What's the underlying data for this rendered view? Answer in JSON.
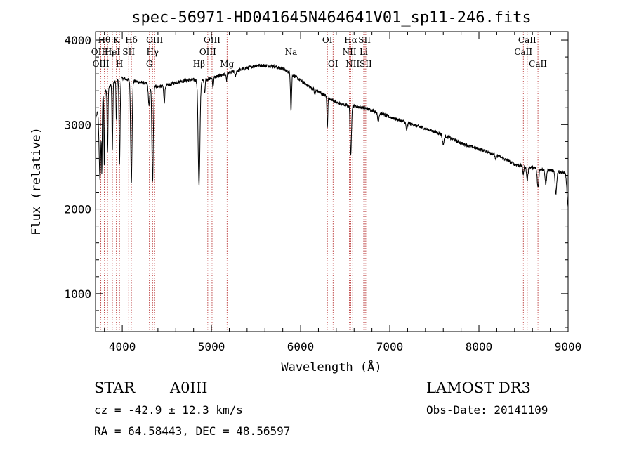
{
  "chart_data": {
    "type": "line",
    "title": "spec-56971-HD041645N464641V01_sp11-246.fits",
    "xlabel": "Wavelength (Å)",
    "ylabel": "Flux (relative)",
    "xlim": [
      3700,
      9000
    ],
    "ylim": [
      550,
      4100
    ],
    "x_ticks": [
      4000,
      5000,
      6000,
      7000,
      8000,
      9000
    ],
    "y_ticks": [
      1000,
      2000,
      3000,
      4000
    ],
    "x_tick_labels": [
      "4000",
      "5000",
      "6000",
      "7000",
      "8000",
      "9000"
    ],
    "y_tick_labels": [
      "1000",
      "2000",
      "3000",
      "4000"
    ],
    "continuum": [
      [
        3700,
        3050
      ],
      [
        3720,
        3150
      ],
      [
        3760,
        3300
      ],
      [
        3800,
        3380
      ],
      [
        3850,
        3450
      ],
      [
        3900,
        3500
      ],
      [
        3950,
        3530
      ],
      [
        4000,
        3550
      ],
      [
        4100,
        3520
      ],
      [
        4200,
        3500
      ],
      [
        4300,
        3480
      ],
      [
        4400,
        3450
      ],
      [
        4500,
        3460
      ],
      [
        4600,
        3500
      ],
      [
        4700,
        3520
      ],
      [
        4800,
        3530
      ],
      [
        4900,
        3520
      ],
      [
        5000,
        3550
      ],
      [
        5100,
        3580
      ],
      [
        5200,
        3610
      ],
      [
        5300,
        3640
      ],
      [
        5400,
        3670
      ],
      [
        5500,
        3700
      ],
      [
        5600,
        3700
      ],
      [
        5700,
        3690
      ],
      [
        5800,
        3660
      ],
      [
        5900,
        3600
      ],
      [
        6000,
        3520
      ],
      [
        6100,
        3450
      ],
      [
        6200,
        3390
      ],
      [
        6300,
        3330
      ],
      [
        6400,
        3260
      ],
      [
        6500,
        3230
      ],
      [
        6600,
        3220
      ],
      [
        6700,
        3200
      ],
      [
        6800,
        3170
      ],
      [
        6900,
        3130
      ],
      [
        7000,
        3090
      ],
      [
        7200,
        3020
      ],
      [
        7400,
        2950
      ],
      [
        7600,
        2880
      ],
      [
        7800,
        2780
      ],
      [
        8000,
        2710
      ],
      [
        8200,
        2640
      ],
      [
        8400,
        2530
      ],
      [
        8600,
        2490
      ],
      [
        8800,
        2460
      ],
      [
        9000,
        2420
      ]
    ],
    "absorption_features": [
      [
        3750,
        900,
        10
      ],
      [
        3771,
        800,
        4
      ],
      [
        3798,
        850,
        4
      ],
      [
        3835,
        750,
        5
      ],
      [
        3889,
        800,
        5
      ],
      [
        3934,
        500,
        4
      ],
      [
        3970,
        1000,
        6
      ],
      [
        4102,
        1200,
        8
      ],
      [
        4300,
        250,
        8
      ],
      [
        4340,
        1150,
        8
      ],
      [
        4471,
        200,
        6
      ],
      [
        4861,
        1250,
        10
      ],
      [
        4924,
        150,
        5
      ],
      [
        5018,
        120,
        5
      ],
      [
        5169,
        80,
        5
      ],
      [
        5270,
        60,
        6
      ],
      [
        5890,
        280,
        5
      ],
      [
        5896,
        250,
        5
      ],
      [
        6160,
        60,
        6
      ],
      [
        6300,
        350,
        5
      ],
      [
        6563,
        600,
        7
      ],
      [
        6870,
        100,
        8
      ],
      [
        7190,
        90,
        8
      ],
      [
        7600,
        110,
        10
      ],
      [
        8190,
        60,
        8
      ],
      [
        8498,
        100,
        6
      ],
      [
        8542,
        160,
        8
      ],
      [
        8662,
        220,
        9
      ],
      [
        8750,
        170,
        8
      ],
      [
        8863,
        260,
        9
      ],
      [
        9000,
        400,
        12
      ]
    ],
    "spectral_lines": [
      {
        "label": "Hθ",
        "x": 3798,
        "row": 1
      },
      {
        "label": "OII",
        "x": 3727,
        "row": 2
      },
      {
        "label": "OIII",
        "x": 3760,
        "row": 3
      },
      {
        "label": "Hη",
        "x": 3835,
        "row": 2
      },
      {
        "label": "HeI",
        "x": 3889,
        "row": 2
      },
      {
        "label": "K",
        "x": 3934,
        "row": 1
      },
      {
        "label": "H",
        "x": 3969,
        "row": 3
      },
      {
        "label": "Hδ",
        "x": 4102,
        "row": 1
      },
      {
        "label": "SII",
        "x": 4072,
        "row": 2
      },
      {
        "label": "OIII",
        "x": 4363,
        "row": 1
      },
      {
        "label": "Hγ",
        "x": 4340,
        "row": 2
      },
      {
        "label": "G",
        "x": 4304,
        "row": 3
      },
      {
        "label": "Hβ",
        "x": 4861,
        "row": 3
      },
      {
        "label": "OIII",
        "x": 5007,
        "row": 1
      },
      {
        "label": "OIII",
        "x": 4959,
        "row": 2
      },
      {
        "label": "Mg",
        "x": 5175,
        "row": 3
      },
      {
        "label": "Na",
        "x": 5893,
        "row": 2
      },
      {
        "label": "OI",
        "x": 6300,
        "row": 1
      },
      {
        "label": "OI",
        "x": 6364,
        "row": 3
      },
      {
        "label": "Hα",
        "x": 6563,
        "row": 1
      },
      {
        "label": "NII",
        "x": 6548,
        "row": 2
      },
      {
        "label": "NII",
        "x": 6584,
        "row": 3
      },
      {
        "label": "SII",
        "x": 6717,
        "row": 1
      },
      {
        "label": "Li",
        "x": 6708,
        "row": 2
      },
      {
        "label": "SII",
        "x": 6731,
        "row": 3
      },
      {
        "label": "CaII",
        "x": 8542,
        "row": 1
      },
      {
        "label": "CaII",
        "x": 8498,
        "row": 2
      },
      {
        "label": "CaII",
        "x": 8662,
        "row": 3
      }
    ]
  },
  "info": {
    "class": "STAR",
    "subclass": "A0III",
    "survey": "LAMOST  DR3",
    "cz": "cz = -42.9 ± 12.3 km/s",
    "obs_date": "Obs-Date: 20141109",
    "coords": "RA =  64.58443, DEC =  48.56597"
  },
  "colors": {
    "spectrum": "#000000",
    "line_markers": "#b22222",
    "axes": "#000000"
  }
}
